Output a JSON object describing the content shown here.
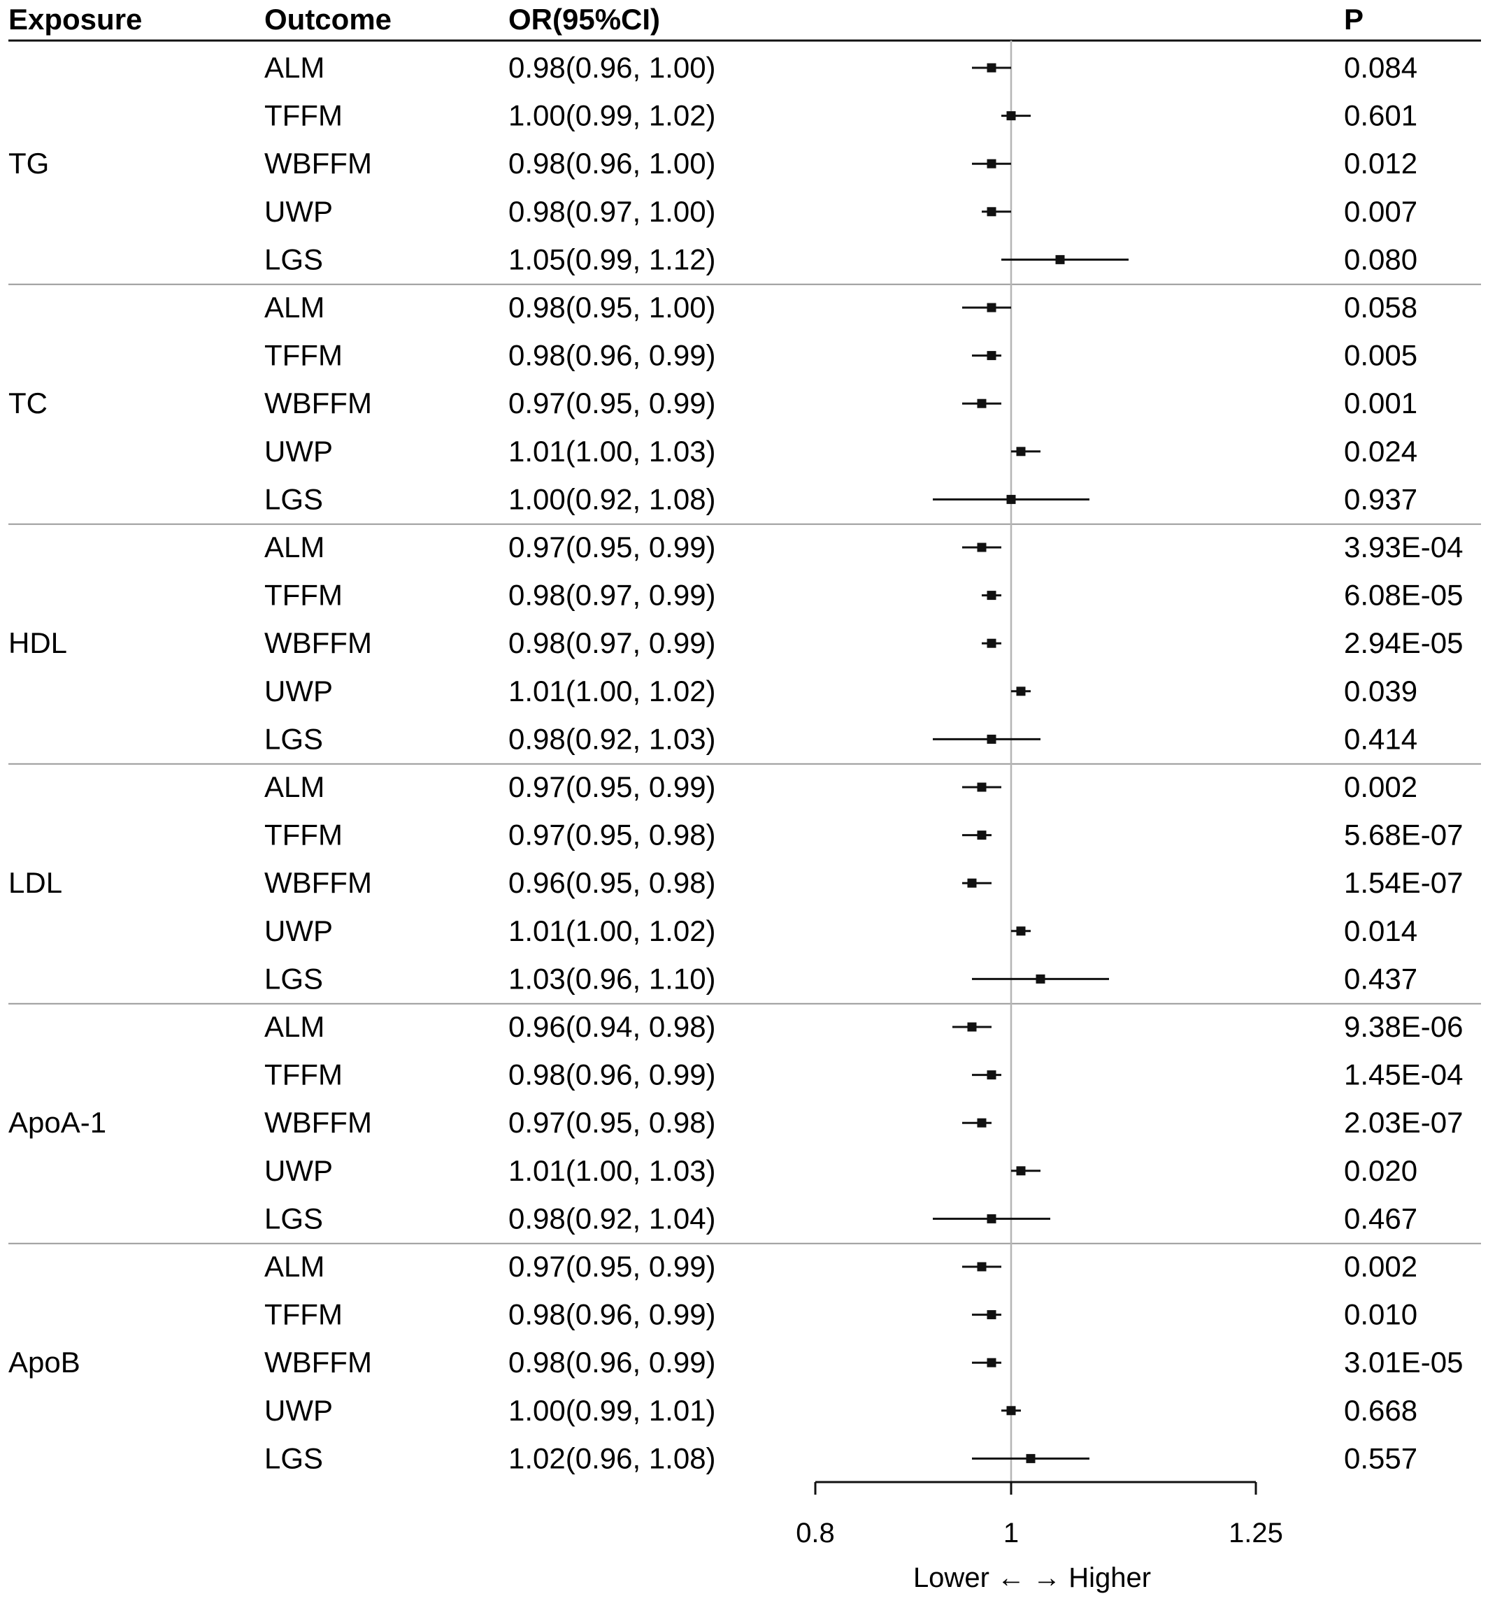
{
  "headers": {
    "exposure": "Exposure",
    "outcome": "Outcome",
    "or_ci": "OR(95%CI)",
    "p": "P"
  },
  "chart_data": {
    "type": "forest",
    "reference_line": 1,
    "xlim": [
      0.8,
      1.25
    ],
    "x_ticks": [
      "0.8",
      "1",
      "1.25"
    ],
    "x_tick_values": [
      0.8,
      1,
      1.25
    ],
    "xlabel": "Lower ←  → Higher",
    "groups": [
      {
        "exposure": "TG",
        "rows": [
          {
            "outcome": "ALM",
            "or_ci": "0.98(0.96, 1.00)",
            "or": 0.98,
            "lo": 0.96,
            "hi": 1.0,
            "p": "0.084"
          },
          {
            "outcome": "TFFM",
            "or_ci": "1.00(0.99, 1.02)",
            "or": 1.0,
            "lo": 0.99,
            "hi": 1.02,
            "p": "0.601"
          },
          {
            "outcome": "WBFFM",
            "or_ci": "0.98(0.96, 1.00)",
            "or": 0.98,
            "lo": 0.96,
            "hi": 1.0,
            "p": "0.012"
          },
          {
            "outcome": "UWP",
            "or_ci": "0.98(0.97, 1.00)",
            "or": 0.98,
            "lo": 0.97,
            "hi": 1.0,
            "p": "0.007"
          },
          {
            "outcome": "LGS",
            "or_ci": "1.05(0.99, 1.12)",
            "or": 1.05,
            "lo": 0.99,
            "hi": 1.12,
            "p": "0.080"
          }
        ]
      },
      {
        "exposure": "TC",
        "rows": [
          {
            "outcome": "ALM",
            "or_ci": "0.98(0.95, 1.00)",
            "or": 0.98,
            "lo": 0.95,
            "hi": 1.0,
            "p": "0.058"
          },
          {
            "outcome": "TFFM",
            "or_ci": "0.98(0.96, 0.99)",
            "or": 0.98,
            "lo": 0.96,
            "hi": 0.99,
            "p": "0.005"
          },
          {
            "outcome": "WBFFM",
            "or_ci": "0.97(0.95, 0.99)",
            "or": 0.97,
            "lo": 0.95,
            "hi": 0.99,
            "p": "0.001"
          },
          {
            "outcome": "UWP",
            "or_ci": "1.01(1.00, 1.03)",
            "or": 1.01,
            "lo": 1.0,
            "hi": 1.03,
            "p": "0.024"
          },
          {
            "outcome": "LGS",
            "or_ci": "1.00(0.92, 1.08)",
            "or": 1.0,
            "lo": 0.92,
            "hi": 1.08,
            "p": "0.937"
          }
        ]
      },
      {
        "exposure": "HDL",
        "rows": [
          {
            "outcome": "ALM",
            "or_ci": "0.97(0.95, 0.99)",
            "or": 0.97,
            "lo": 0.95,
            "hi": 0.99,
            "p": "3.93E-04"
          },
          {
            "outcome": "TFFM",
            "or_ci": "0.98(0.97, 0.99)",
            "or": 0.98,
            "lo": 0.97,
            "hi": 0.99,
            "p": "6.08E-05"
          },
          {
            "outcome": "WBFFM",
            "or_ci": "0.98(0.97, 0.99)",
            "or": 0.98,
            "lo": 0.97,
            "hi": 0.99,
            "p": "2.94E-05"
          },
          {
            "outcome": "UWP",
            "or_ci": "1.01(1.00, 1.02)",
            "or": 1.01,
            "lo": 1.0,
            "hi": 1.02,
            "p": "0.039"
          },
          {
            "outcome": "LGS",
            "or_ci": "0.98(0.92, 1.03)",
            "or": 0.98,
            "lo": 0.92,
            "hi": 1.03,
            "p": "0.414"
          }
        ]
      },
      {
        "exposure": "LDL",
        "rows": [
          {
            "outcome": "ALM",
            "or_ci": "0.97(0.95, 0.99)",
            "or": 0.97,
            "lo": 0.95,
            "hi": 0.99,
            "p": "0.002"
          },
          {
            "outcome": "TFFM",
            "or_ci": "0.97(0.95, 0.98)",
            "or": 0.97,
            "lo": 0.95,
            "hi": 0.98,
            "p": "5.68E-07"
          },
          {
            "outcome": "WBFFM",
            "or_ci": "0.96(0.95, 0.98)",
            "or": 0.96,
            "lo": 0.95,
            "hi": 0.98,
            "p": "1.54E-07"
          },
          {
            "outcome": "UWP",
            "or_ci": "1.01(1.00, 1.02)",
            "or": 1.01,
            "lo": 1.0,
            "hi": 1.02,
            "p": "0.014"
          },
          {
            "outcome": "LGS",
            "or_ci": "1.03(0.96, 1.10)",
            "or": 1.03,
            "lo": 0.96,
            "hi": 1.1,
            "p": "0.437"
          }
        ]
      },
      {
        "exposure": "ApoA-1",
        "rows": [
          {
            "outcome": "ALM",
            "or_ci": "0.96(0.94, 0.98)",
            "or": 0.96,
            "lo": 0.94,
            "hi": 0.98,
            "p": "9.38E-06"
          },
          {
            "outcome": "TFFM",
            "or_ci": "0.98(0.96, 0.99)",
            "or": 0.98,
            "lo": 0.96,
            "hi": 0.99,
            "p": "1.45E-04"
          },
          {
            "outcome": "WBFFM",
            "or_ci": "0.97(0.95, 0.98)",
            "or": 0.97,
            "lo": 0.95,
            "hi": 0.98,
            "p": "2.03E-07"
          },
          {
            "outcome": "UWP",
            "or_ci": "1.01(1.00, 1.03)",
            "or": 1.01,
            "lo": 1.0,
            "hi": 1.03,
            "p": "0.020"
          },
          {
            "outcome": "LGS",
            "or_ci": "0.98(0.92, 1.04)",
            "or": 0.98,
            "lo": 0.92,
            "hi": 1.04,
            "p": "0.467"
          }
        ]
      },
      {
        "exposure": "ApoB",
        "rows": [
          {
            "outcome": "ALM",
            "or_ci": "0.97(0.95, 0.99)",
            "or": 0.97,
            "lo": 0.95,
            "hi": 0.99,
            "p": "0.002"
          },
          {
            "outcome": "TFFM",
            "or_ci": "0.98(0.96, 0.99)",
            "or": 0.98,
            "lo": 0.96,
            "hi": 0.99,
            "p": "0.010"
          },
          {
            "outcome": "WBFFM",
            "or_ci": "0.98(0.96, 0.99)",
            "or": 0.98,
            "lo": 0.96,
            "hi": 0.99,
            "p": "3.01E-05"
          },
          {
            "outcome": "UWP",
            "or_ci": "1.00(0.99, 1.01)",
            "or": 1.0,
            "lo": 0.99,
            "hi": 1.01,
            "p": "0.668"
          },
          {
            "outcome": "LGS",
            "or_ci": "1.02(0.96, 1.08)",
            "or": 1.02,
            "lo": 0.96,
            "hi": 1.08,
            "p": "0.557"
          }
        ]
      }
    ]
  }
}
